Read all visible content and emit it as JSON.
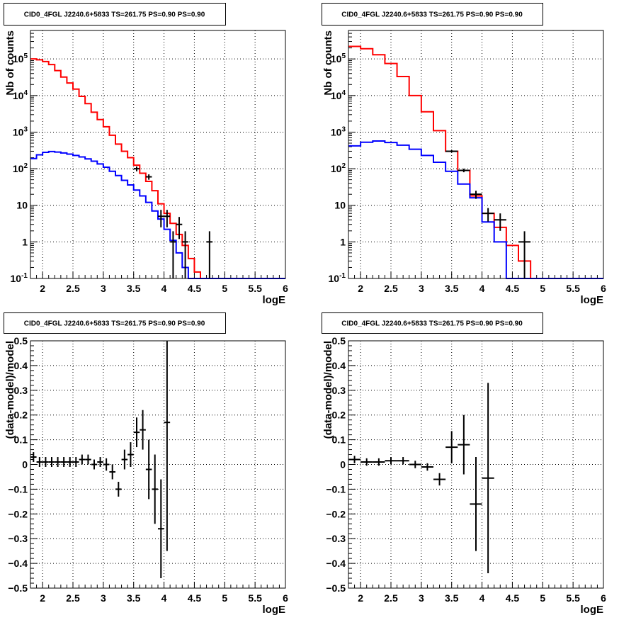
{
  "colors": {
    "data": "#000000",
    "model": "#ff0000",
    "background": "#0000ff",
    "grid": "#000000"
  },
  "chart_data": [
    {
      "type": "line",
      "title": "CID0_4FGL J2240.6+5833 TS=261.75 PS=0.90 PS=0.90",
      "xlabel": "logE",
      "ylabel": "Nb of counts",
      "xlim": [
        1.8,
        6.0
      ],
      "ylim": [
        0.1,
        600000
      ],
      "yscale": "log",
      "grid": true,
      "x_ticks": [
        "2",
        "2.5",
        "3",
        "3.5",
        "4",
        "4.5",
        "5",
        "5.5",
        "6"
      ],
      "y_ticks": [
        "10^-1",
        "1",
        "10",
        "10^2",
        "10^3",
        "10^4",
        "10^5"
      ],
      "bin_edges": [
        1.8,
        1.9,
        2.0,
        2.1,
        2.2,
        2.3,
        2.4,
        2.5,
        2.6,
        2.7,
        2.8,
        2.9,
        3.0,
        3.1,
        3.2,
        3.3,
        3.4,
        3.5,
        3.6,
        3.7,
        3.8,
        3.9,
        4.0,
        4.1,
        4.2,
        4.3,
        4.4,
        4.5,
        4.6,
        4.7,
        4.8,
        4.9,
        5.0,
        5.1,
        5.2,
        5.3,
        5.4,
        5.5,
        5.6,
        5.7,
        5.8,
        5.9,
        6.0
      ],
      "series": [
        {
          "role": "model",
          "values": [
            100000,
            95000,
            85000,
            70000,
            48000,
            32000,
            22000,
            15000,
            9500,
            6000,
            3500,
            2200,
            1400,
            820,
            470,
            300,
            200,
            125,
            75,
            45,
            25,
            11,
            6,
            3.2,
            1.6,
            0.8,
            0.35,
            0.15,
            0.1,
            0.1,
            0.1,
            0.1,
            0.1,
            0.1,
            0.1,
            0.1,
            0.1,
            0.1,
            0.1,
            0.1,
            0.1,
            0.1
          ]
        },
        {
          "role": "background",
          "values": [
            190,
            240,
            280,
            295,
            285,
            270,
            250,
            230,
            210,
            185,
            160,
            135,
            110,
            85,
            65,
            48,
            36,
            26,
            18,
            12,
            7,
            4.2,
            2.2,
            1.1,
            0.5,
            0.2,
            0.1,
            0.1,
            0.1,
            0.1,
            0.1,
            0.1,
            0.1,
            0.1,
            0.1,
            0.1,
            0.1,
            0.1,
            0.1,
            0.1,
            0.1,
            0.1
          ]
        },
        {
          "role": "data",
          "points": [
            [
              3.55,
              100,
              15
            ],
            [
              3.75,
              60,
              10
            ],
            [
              3.95,
              5,
              2.5
            ],
            [
              4.05,
              5,
              2.5
            ],
            [
              4.15,
              1,
              0.95
            ],
            [
              4.25,
              3,
              1.8
            ],
            [
              4.35,
              1,
              0.95
            ],
            [
              4.75,
              1,
              0.95
            ]
          ]
        }
      ]
    },
    {
      "type": "line",
      "title": "CID0_4FGL J2240.6+5833 TS=261.75 PS=0.90 PS=0.90",
      "xlabel": "logE",
      "ylabel": "Nb of counts",
      "xlim": [
        1.8,
        6.0
      ],
      "ylim": [
        0.1,
        600000
      ],
      "yscale": "log",
      "grid": true,
      "x_ticks": [
        "2",
        "2.5",
        "3",
        "3.5",
        "4",
        "4.5",
        "5",
        "5.5",
        "6"
      ],
      "y_ticks": [
        "10^-1",
        "1",
        "10",
        "10^2",
        "10^3",
        "10^4",
        "10^5"
      ],
      "bin_edges": [
        1.8,
        2.0,
        2.2,
        2.4,
        2.6,
        2.8,
        3.0,
        3.2,
        3.4,
        3.6,
        3.8,
        4.0,
        4.2,
        4.4,
        4.6,
        4.8,
        5.0,
        5.2,
        5.4,
        5.6,
        5.8,
        6.0
      ],
      "series": [
        {
          "role": "model",
          "values": [
            220000,
            190000,
            130000,
            75000,
            33000,
            10000,
            3600,
            1100,
            300,
            90,
            18,
            6,
            2.5,
            0.8,
            0.3,
            0.1,
            0.1,
            0.1,
            0.1,
            0.1,
            0.1
          ]
        },
        {
          "role": "background",
          "values": [
            420,
            530,
            570,
            520,
            440,
            340,
            230,
            150,
            85,
            38,
            16,
            3.5,
            1,
            0.1,
            0.1,
            0.1,
            0.1,
            0.1,
            0.1,
            0.1,
            0.1
          ]
        },
        {
          "role": "data",
          "points": [
            [
              3.5,
              300,
              20
            ],
            [
              3.7,
              90,
              10
            ],
            [
              3.9,
              20,
              5
            ],
            [
              4.1,
              6,
              2.4
            ],
            [
              4.3,
              4,
              2
            ],
            [
              4.7,
              1,
              0.95
            ]
          ]
        }
      ]
    },
    {
      "type": "scatter",
      "title": "CID0_4FGL J2240.6+5833 TS=261.75 PS=0.90 PS=0.90",
      "xlabel": "logE",
      "ylabel": "(data-model)/model",
      "xlim": [
        1.8,
        6.0
      ],
      "ylim": [
        -0.5,
        0.5
      ],
      "grid": true,
      "x_ticks": [
        "2",
        "2.5",
        "3",
        "3.5",
        "4",
        "4.5",
        "5",
        "5.5",
        "6"
      ],
      "y_ticks": [
        "−0.5",
        "−0.4",
        "−0.3",
        "−0.2",
        "−0.1",
        "0",
        "0.1",
        "0.2",
        "0.3",
        "0.4",
        "0.5"
      ],
      "xerr": 0.05,
      "points": [
        [
          1.85,
          0.03,
          0.02
        ],
        [
          1.95,
          0.01,
          0.02
        ],
        [
          2.05,
          0.01,
          0.02
        ],
        [
          2.15,
          0.01,
          0.02
        ],
        [
          2.25,
          0.01,
          0.02
        ],
        [
          2.35,
          0.01,
          0.02
        ],
        [
          2.45,
          0.01,
          0.02
        ],
        [
          2.55,
          0.01,
          0.02
        ],
        [
          2.65,
          0.02,
          0.02
        ],
        [
          2.75,
          0.02,
          0.02
        ],
        [
          2.85,
          0,
          0.02
        ],
        [
          2.95,
          0.01,
          0.02
        ],
        [
          3.05,
          0,
          0.025
        ],
        [
          3.15,
          -0.03,
          0.03
        ],
        [
          3.25,
          -0.1,
          0.03
        ],
        [
          3.35,
          0.02,
          0.04
        ],
        [
          3.45,
          0.04,
          0.05
        ],
        [
          3.55,
          0.13,
          0.06
        ],
        [
          3.65,
          0.14,
          0.08
        ],
        [
          3.75,
          -0.02,
          0.12
        ],
        [
          3.85,
          -0.1,
          0.14
        ],
        [
          3.95,
          -0.26,
          0.2
        ],
        [
          4.05,
          0.17,
          0.52
        ]
      ]
    },
    {
      "type": "scatter",
      "title": "CID0_4FGL J2240.6+5833 TS=261.75 PS=0.90 PS=0.90",
      "xlabel": "logE",
      "ylabel": "(data-model)/model",
      "xlim": [
        1.8,
        6.0
      ],
      "ylim": [
        -0.5,
        0.5
      ],
      "grid": true,
      "x_ticks": [
        "2",
        "2.5",
        "3",
        "3.5",
        "4",
        "4.5",
        "5",
        "5.5",
        "6"
      ],
      "y_ticks": [
        "−0.5",
        "−0.4",
        "−0.3",
        "−0.2",
        "−0.1",
        "0",
        "0.1",
        "0.2",
        "0.3",
        "0.4",
        "0.5"
      ],
      "xerr": 0.1,
      "points": [
        [
          1.9,
          0.02,
          0.015
        ],
        [
          2.1,
          0.01,
          0.015
        ],
        [
          2.3,
          0.01,
          0.015
        ],
        [
          2.5,
          0.015,
          0.015
        ],
        [
          2.7,
          0.015,
          0.015
        ],
        [
          2.9,
          0,
          0.015
        ],
        [
          3.1,
          -0.01,
          0.015
        ],
        [
          3.3,
          -0.06,
          0.025
        ],
        [
          3.5,
          0.07,
          0.065
        ],
        [
          3.7,
          0.08,
          0.12
        ],
        [
          3.9,
          -0.16,
          0.19
        ],
        [
          4.1,
          -0.055,
          0.385
        ]
      ]
    }
  ]
}
